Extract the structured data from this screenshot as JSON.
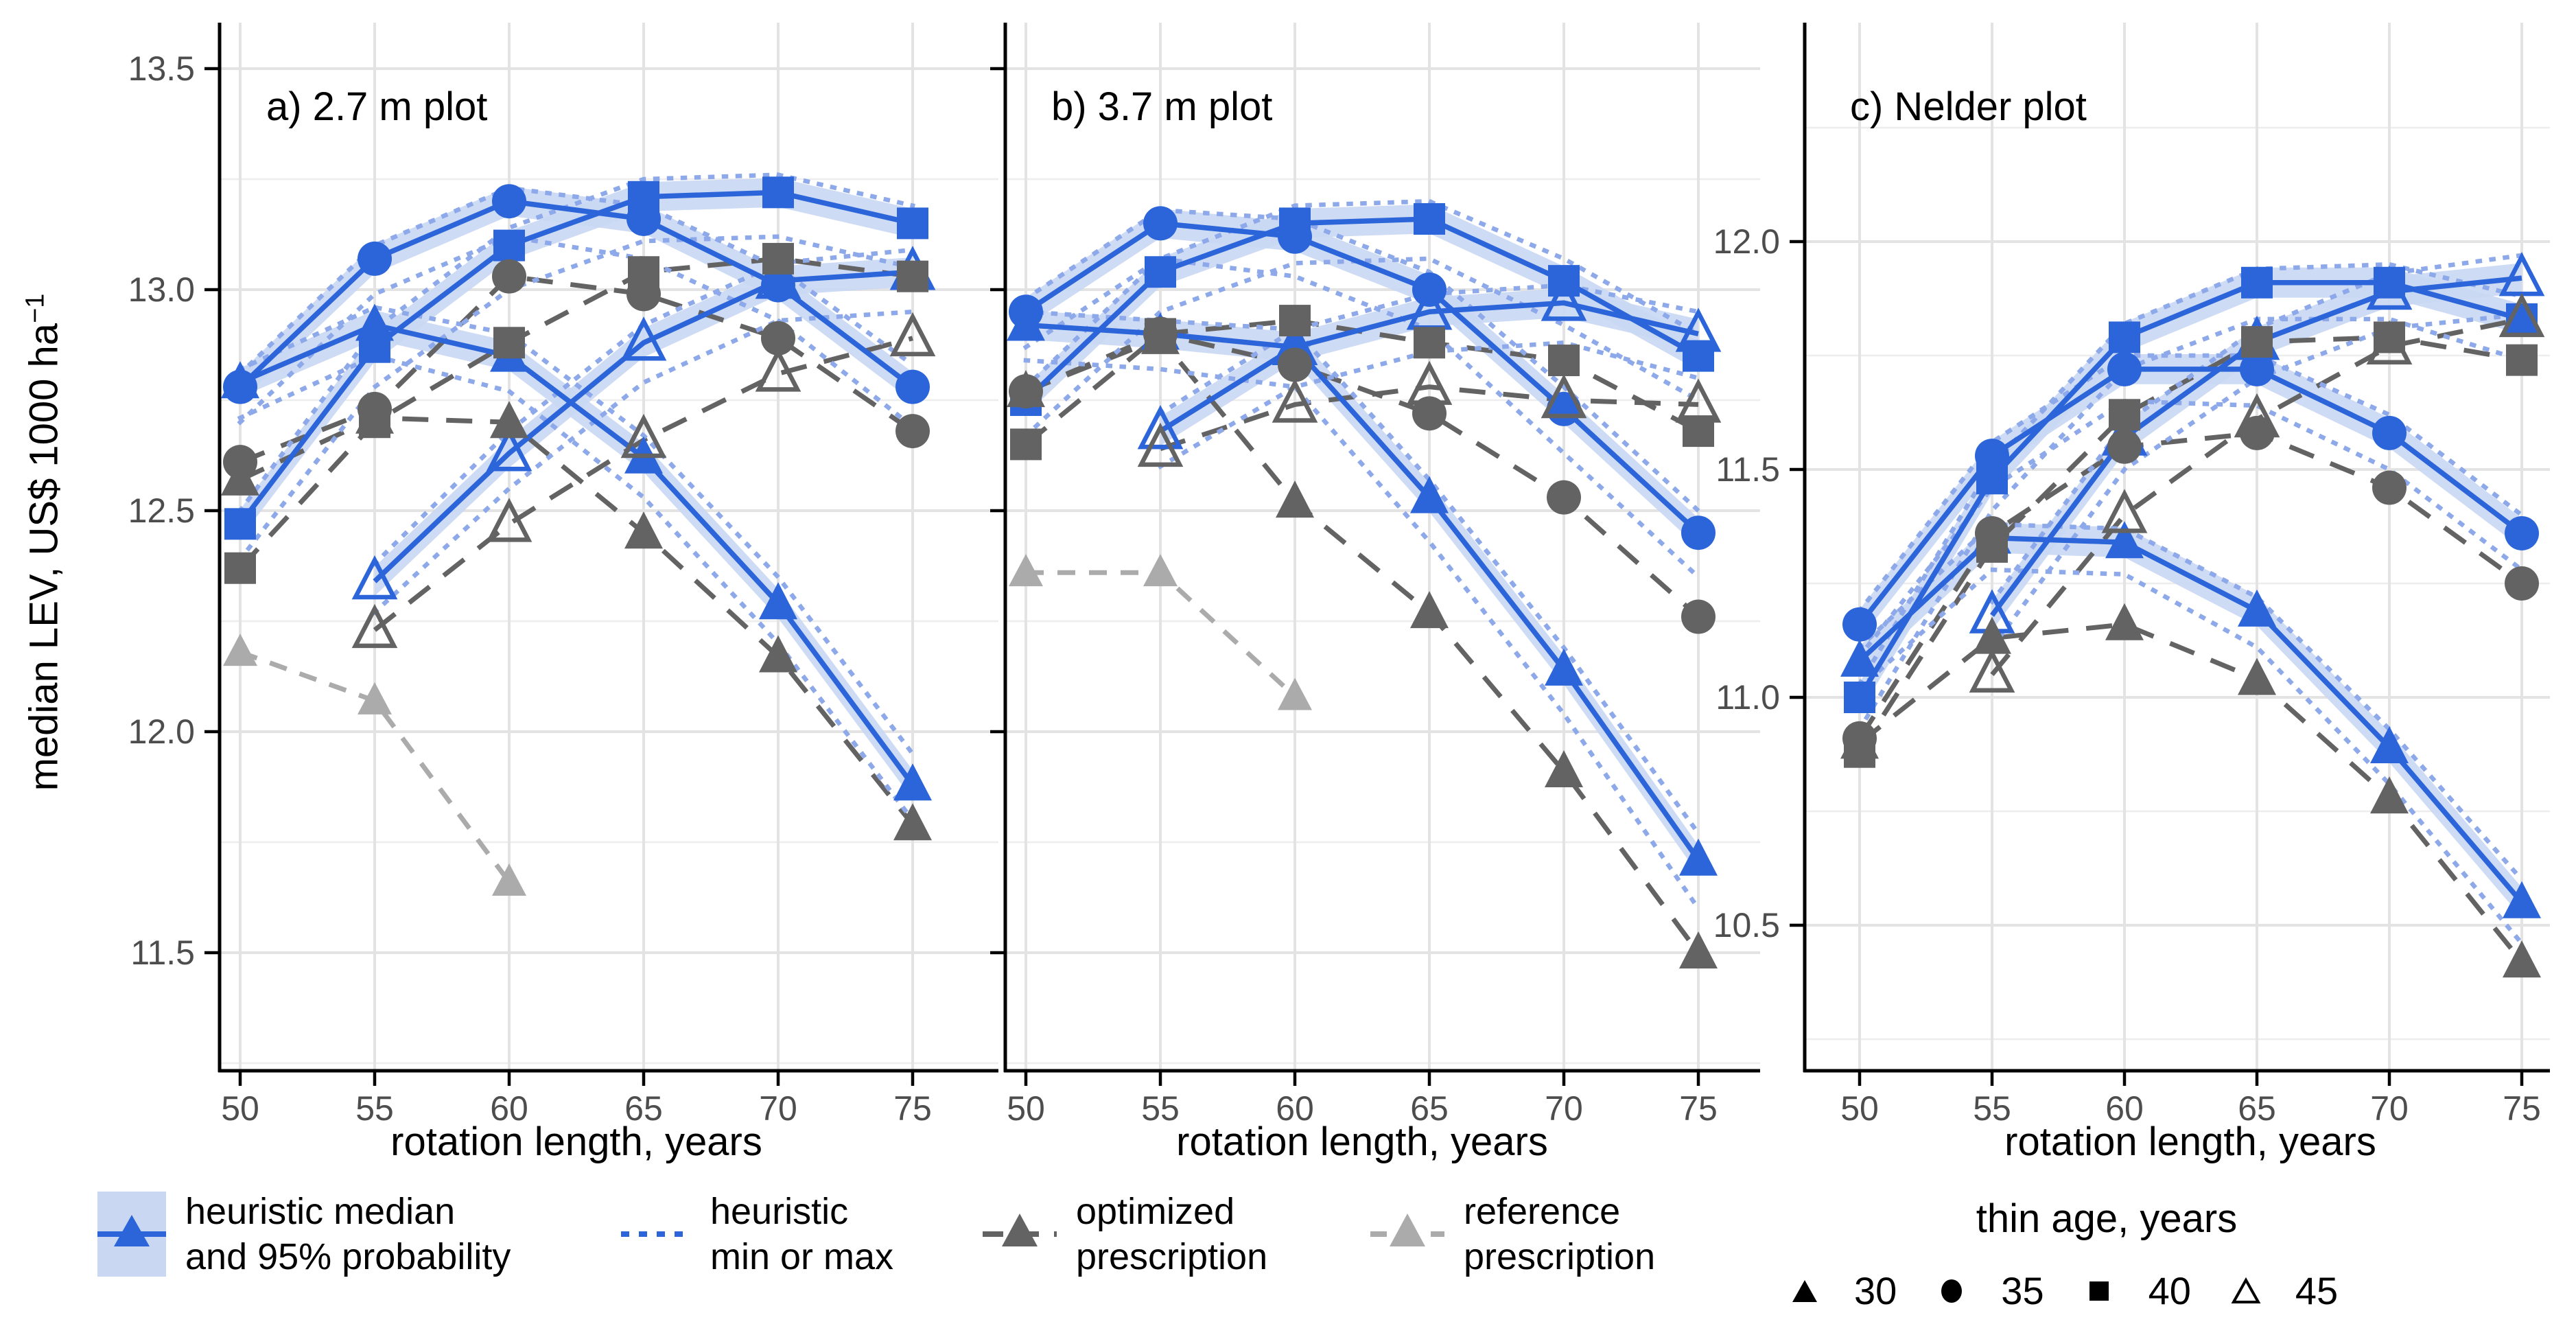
{
  "figure": {
    "panel_titles": [
      "a) 2.7 m plot",
      "b) 3.7 m plot",
      "c) Nelder plot"
    ]
  },
  "axes": {
    "x_title": "rotation length, years",
    "y_title_main": "median LEV, US$ 1000 ha",
    "y_title_sup": "−1",
    "x_ticks": [
      "50",
      "55",
      "60",
      "65",
      "70",
      "75"
    ],
    "y_ticks_ab": [
      "13.5",
      "13.0",
      "12.5",
      "12.0",
      "11.5"
    ],
    "y_ticks_c": [
      "12.0",
      "11.5",
      "11.0",
      "10.5"
    ]
  },
  "colors": {
    "heuristic_blue": "#2b65d9",
    "heuristic_dotted": "#8ea9ea",
    "ribbon": "#c9d7f3",
    "optimized_gray": "#636363",
    "reference_gray": "#ababab",
    "gridline_major": "#e3e3e3",
    "gridline_minor": "#ededed",
    "axis": "#000000",
    "tick_label": "#4d4d4d"
  },
  "legend": {
    "items": [
      {
        "id": "heuristic-median",
        "line1": "heuristic median",
        "line2": "and 95% probability"
      },
      {
        "id": "heuristic-minmax",
        "line1": "heuristic",
        "line2": "min or max"
      },
      {
        "id": "optimized",
        "line1": "optimized",
        "line2": "prescription"
      },
      {
        "id": "reference",
        "line1": "reference",
        "line2": "prescription"
      }
    ],
    "thin_age": {
      "title": "thin age, years",
      "items": [
        {
          "marker": "triangle-filled",
          "label": "30"
        },
        {
          "marker": "circle-filled",
          "label": "35"
        },
        {
          "marker": "square-filled",
          "label": "40"
        },
        {
          "marker": "triangle-open",
          "label": "45"
        }
      ]
    }
  },
  "chart_data": [
    {
      "type": "line",
      "label": "a) 2.7 m plot",
      "xlabel": "rotation length, years",
      "ylabel": "median LEV, US$ 1000 ha−1",
      "x": [
        50,
        55,
        60,
        65,
        70,
        75
      ],
      "ylim": [
        11.3,
        13.6
      ],
      "grid": true,
      "series": [
        {
          "role": "heuristic",
          "thin_age": 30,
          "marker": "triangle",
          "median": [
            12.79,
            12.92,
            12.85,
            12.62,
            12.29,
            11.88
          ],
          "max": [
            12.82,
            12.96,
            12.9,
            12.67,
            12.35,
            11.95
          ],
          "min": [
            12.71,
            12.85,
            12.77,
            12.53,
            12.2,
            11.8
          ]
        },
        {
          "role": "heuristic",
          "thin_age": 35,
          "marker": "circle",
          "median": [
            12.78,
            13.07,
            13.2,
            13.16,
            13.01,
            12.78
          ],
          "max": [
            12.81,
            13.1,
            13.23,
            13.19,
            13.05,
            12.83
          ],
          "min": [
            12.7,
            12.99,
            13.12,
            13.07,
            12.93,
            12.69
          ]
        },
        {
          "role": "heuristic",
          "thin_age": 40,
          "marker": "square",
          "median": [
            12.47,
            12.87,
            13.1,
            13.21,
            13.22,
            13.15
          ],
          "max": [
            12.5,
            12.91,
            13.14,
            13.25,
            13.26,
            13.19
          ],
          "min": [
            12.39,
            12.78,
            13.0,
            13.11,
            13.12,
            13.05
          ]
        },
        {
          "role": "heuristic",
          "thin_age": 45,
          "marker": "triangle-open",
          "median": [
            null,
            12.34,
            12.63,
            12.88,
            13.02,
            13.04
          ],
          "max": [
            null,
            12.38,
            12.68,
            12.92,
            13.06,
            13.09
          ],
          "min": [
            null,
            12.27,
            12.55,
            12.79,
            12.93,
            12.95
          ]
        },
        {
          "role": "optimized",
          "thin_age": 30,
          "marker": "triangle",
          "values": [
            12.57,
            12.71,
            12.7,
            12.45,
            12.17,
            11.79
          ]
        },
        {
          "role": "optimized",
          "thin_age": 35,
          "marker": "circle",
          "values": [
            12.61,
            12.73,
            13.03,
            12.99,
            12.89,
            12.68
          ]
        },
        {
          "role": "optimized",
          "thin_age": 40,
          "marker": "square",
          "values": [
            12.37,
            12.7,
            12.88,
            13.04,
            13.07,
            13.03
          ]
        },
        {
          "role": "optimized",
          "thin_age": 45,
          "marker": "triangle-open",
          "values": [
            null,
            12.23,
            12.47,
            12.66,
            12.81,
            12.89
          ]
        },
        {
          "role": "reference",
          "thin_age": 30,
          "marker": "triangle",
          "values": [
            12.18,
            12.07,
            11.66,
            null,
            null,
            null
          ]
        }
      ]
    },
    {
      "type": "line",
      "label": "b) 3.7 m plot",
      "xlabel": "rotation length, years",
      "ylabel": "median LEV, US$ 1000 ha−1",
      "x": [
        50,
        55,
        60,
        65,
        70,
        75
      ],
      "ylim": [
        11.3,
        13.6
      ],
      "grid": true,
      "series": [
        {
          "role": "heuristic",
          "thin_age": 30,
          "marker": "triangle",
          "median": [
            12.92,
            12.9,
            12.87,
            12.53,
            12.14,
            11.71
          ],
          "max": [
            12.95,
            12.93,
            12.91,
            12.57,
            12.19,
            11.77
          ],
          "min": [
            12.84,
            12.82,
            12.78,
            12.43,
            12.04,
            11.6
          ]
        },
        {
          "role": "heuristic",
          "thin_age": 35,
          "marker": "circle",
          "median": [
            12.95,
            13.15,
            13.12,
            13.0,
            12.73,
            12.45
          ],
          "max": [
            12.98,
            13.18,
            13.16,
            13.04,
            12.78,
            12.5
          ],
          "min": [
            12.87,
            13.07,
            13.03,
            12.91,
            12.63,
            12.35
          ]
        },
        {
          "role": "heuristic",
          "thin_age": 40,
          "marker": "square",
          "median": [
            12.75,
            13.04,
            13.15,
            13.16,
            13.02,
            12.85
          ],
          "max": [
            12.78,
            13.07,
            13.19,
            13.2,
            13.07,
            12.9
          ],
          "min": [
            12.67,
            12.95,
            13.06,
            13.07,
            12.92,
            12.75
          ]
        },
        {
          "role": "heuristic",
          "thin_age": 45,
          "marker": "triangle-open",
          "median": [
            null,
            12.68,
            12.87,
            12.95,
            12.97,
            12.9
          ],
          "max": [
            null,
            12.72,
            12.91,
            12.99,
            13.01,
            12.95
          ],
          "min": [
            null,
            12.6,
            12.78,
            12.86,
            12.88,
            12.8
          ]
        },
        {
          "role": "optimized",
          "thin_age": 30,
          "marker": "triangle",
          "values": [
            12.77,
            12.89,
            12.52,
            12.27,
            11.91,
            11.5
          ]
        },
        {
          "role": "optimized",
          "thin_age": 35,
          "marker": "circle",
          "values": [
            12.77,
            12.9,
            12.83,
            12.72,
            12.53,
            12.26
          ]
        },
        {
          "role": "optimized",
          "thin_age": 40,
          "marker": "square",
          "values": [
            12.65,
            12.9,
            12.93,
            12.88,
            12.84,
            12.68
          ]
        },
        {
          "role": "optimized",
          "thin_age": 45,
          "marker": "triangle-open",
          "values": [
            null,
            12.64,
            12.74,
            12.78,
            12.75,
            12.74
          ]
        },
        {
          "role": "reference",
          "thin_age": 30,
          "marker": "triangle",
          "values": [
            12.36,
            12.36,
            12.08,
            null,
            null,
            null
          ]
        }
      ]
    },
    {
      "type": "line",
      "label": "c) Nelder plot",
      "xlabel": "rotation length, years",
      "ylabel": "median LEV, US$ 1000 ha−1",
      "x": [
        50,
        55,
        60,
        65,
        70,
        75
      ],
      "ylim": [
        10.3,
        12.3
      ],
      "grid": true,
      "series": [
        {
          "role": "heuristic",
          "thin_age": 30,
          "marker": "triangle",
          "median": [
            11.08,
            11.35,
            11.34,
            11.19,
            10.89,
            10.55
          ],
          "max": [
            11.11,
            11.38,
            11.37,
            11.22,
            10.93,
            10.6
          ],
          "min": [
            11.02,
            11.28,
            11.27,
            11.11,
            10.81,
            10.46
          ]
        },
        {
          "role": "heuristic",
          "thin_age": 35,
          "marker": "circle",
          "median": [
            11.16,
            11.53,
            11.72,
            11.72,
            11.58,
            11.36
          ],
          "max": [
            11.19,
            11.56,
            11.75,
            11.75,
            11.62,
            11.4
          ],
          "min": [
            11.09,
            11.46,
            11.65,
            11.64,
            11.5,
            11.28
          ]
        },
        {
          "role": "heuristic",
          "thin_age": 40,
          "marker": "square",
          "median": [
            11.0,
            11.48,
            11.79,
            11.91,
            11.91,
            11.83
          ],
          "max": [
            11.03,
            11.51,
            11.82,
            11.94,
            11.95,
            11.88
          ],
          "min": [
            10.93,
            11.41,
            11.72,
            11.83,
            11.83,
            11.74
          ]
        },
        {
          "role": "heuristic",
          "thin_age": 45,
          "marker": "triangle-open",
          "median": [
            null,
            11.18,
            11.57,
            11.78,
            11.89,
            11.92
          ],
          "max": [
            null,
            11.21,
            11.6,
            11.81,
            11.93,
            11.97
          ],
          "min": [
            null,
            11.11,
            11.5,
            11.7,
            11.81,
            11.84
          ]
        },
        {
          "role": "optimized",
          "thin_age": 30,
          "marker": "triangle",
          "values": [
            10.9,
            11.13,
            11.16,
            11.04,
            10.78,
            10.42
          ]
        },
        {
          "role": "optimized",
          "thin_age": 35,
          "marker": "circle",
          "values": [
            10.91,
            11.36,
            11.55,
            11.58,
            11.46,
            11.25
          ]
        },
        {
          "role": "optimized",
          "thin_age": 40,
          "marker": "square",
          "values": [
            10.88,
            11.33,
            11.62,
            11.78,
            11.79,
            11.74
          ]
        },
        {
          "role": "optimized",
          "thin_age": 45,
          "marker": "triangle-open",
          "values": [
            null,
            11.05,
            11.4,
            11.61,
            11.77,
            11.83
          ]
        }
      ]
    }
  ]
}
